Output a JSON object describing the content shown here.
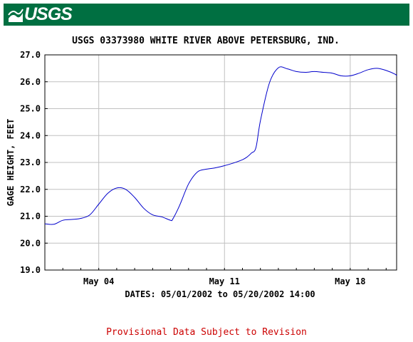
{
  "brand": {
    "logo_text": "USGS",
    "banner_color": "#006f41"
  },
  "chart_data": {
    "type": "line",
    "title": "USGS 03373980 WHITE RIVER ABOVE PETERSBURG, IND.",
    "ylabel": "GAGE HEIGHT, FEET",
    "xlabel": "DATES: 05/01/2002 to 05/20/2002 14:00",
    "ylim": [
      19.0,
      27.0
    ],
    "yticks": [
      "19.0",
      "20.0",
      "21.0",
      "22.0",
      "23.0",
      "24.0",
      "25.0",
      "26.0",
      "27.0"
    ],
    "xlim": [
      "2002-05-01 00:00",
      "2002-05-20 14:00"
    ],
    "xticks": [
      {
        "label": "May 04",
        "date": "2002-05-04"
      },
      {
        "label": "May 11",
        "date": "2002-05-11"
      },
      {
        "label": "May 18",
        "date": "2002-05-18"
      }
    ],
    "grid": true,
    "line_color": "#0000cc",
    "series": [
      {
        "x": [
          "2002-05-01 00:00",
          "2002-05-01 12:00",
          "2002-05-02 00:00",
          "2002-05-02 12:00",
          "2002-05-03 00:00",
          "2002-05-03 12:00",
          "2002-05-04 00:00",
          "2002-05-04 12:00",
          "2002-05-05 00:00",
          "2002-05-05 12:00",
          "2002-05-06 00:00",
          "2002-05-06 12:00",
          "2002-05-07 00:00",
          "2002-05-07 12:00",
          "2002-05-08 00:00",
          "2002-05-08 12:00",
          "2002-05-08 03:00",
          "2002-05-09 00:00",
          "2002-05-09 12:00",
          "2002-05-10 00:00",
          "2002-05-10 12:00",
          "2002-05-11 00:00",
          "2002-05-11 12:00",
          "2002-05-12 00:00",
          "2002-05-12 06:00",
          "2002-05-12 12:00",
          "2002-05-12 18:00",
          "2002-05-13 00:00",
          "2002-05-13 12:00",
          "2002-05-14 00:00",
          "2002-05-14 12:00",
          "2002-05-15 00:00",
          "2002-05-15 12:00",
          "2002-05-16 00:00",
          "2002-05-16 12:00",
          "2002-05-17 00:00",
          "2002-05-17 12:00",
          "2002-05-18 00:00",
          "2002-05-18 12:00",
          "2002-05-19 00:00",
          "2002-05-19 12:00",
          "2002-05-20 00:00",
          "2002-05-20 12:00",
          "2002-05-20 14:00"
        ],
        "y": [
          20.72,
          20.7,
          20.85,
          20.88,
          20.92,
          21.05,
          21.45,
          21.85,
          22.05,
          22.0,
          21.7,
          21.3,
          21.05,
          20.98,
          20.85,
          21.4,
          20.9,
          22.2,
          22.65,
          22.75,
          22.8,
          22.88,
          22.98,
          23.1,
          23.2,
          23.35,
          23.55,
          24.55,
          25.95,
          26.52,
          26.48,
          26.38,
          26.35,
          26.38,
          26.35,
          26.32,
          26.22,
          26.22,
          26.32,
          26.45,
          26.5,
          26.42,
          26.28,
          26.22
        ]
      }
    ]
  },
  "footnote": "Provisional Data Subject to Revision"
}
